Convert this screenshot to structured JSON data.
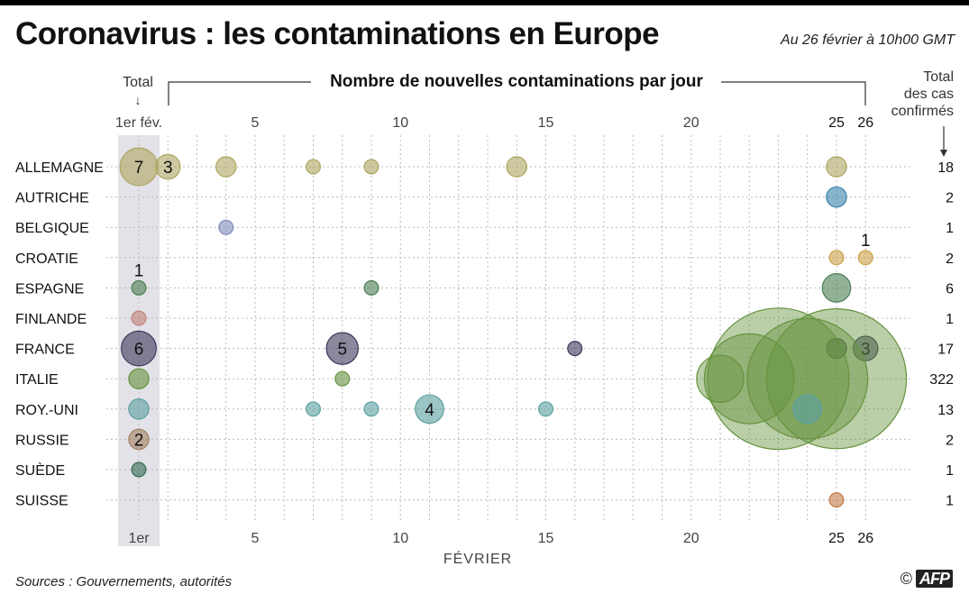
{
  "header": {
    "title": "Coronavirus : les contaminations en Europe",
    "date_note": "Au 26 février à 10h00 GMT"
  },
  "footer": {
    "source": "Sources : Gouvernements, autorités",
    "credit_symbol": "©",
    "credit_logo": "AFP"
  },
  "chart_data": {
    "type": "scatter",
    "subtitle": "Nombre de nouvelles contaminations par jour",
    "xlabel": "FÉVRIER",
    "left_column_label": "Total",
    "left_column_arrow": "↓",
    "right_column_label": [
      "Total",
      "des cas",
      "confirmés"
    ],
    "right_column_arrow": "↓",
    "x_ticks_top": [
      "1er fév.",
      "5",
      "10",
      "15",
      "20",
      "25",
      "26"
    ],
    "x_ticks_bottom": [
      "1er",
      "5",
      "10",
      "15",
      "20",
      "25",
      "26"
    ],
    "x_tick_values": [
      1,
      5,
      10,
      15,
      20,
      25,
      26
    ],
    "xlim": [
      1,
      26
    ],
    "size_encoding": "bubble area proportional to number of cases",
    "grid": true,
    "countries": [
      {
        "name": "ALLEMAGNE",
        "total": "18",
        "color": "#d9cf78",
        "points": [
          [
            1,
            7
          ],
          [
            2,
            3
          ],
          [
            4,
            2
          ],
          [
            7,
            1
          ],
          [
            9,
            1
          ],
          [
            14,
            2
          ],
          [
            25,
            2
          ]
        ],
        "labels": {
          "1": "7",
          "2": "3"
        }
      },
      {
        "name": "AUTRICHE",
        "total": "2",
        "color": "#4aa3d8",
        "points": [
          [
            25,
            2
          ]
        ],
        "labels": {}
      },
      {
        "name": "BELGIQUE",
        "total": "1",
        "color": "#9fadea",
        "points": [
          [
            4,
            1
          ]
        ],
        "labels": {}
      },
      {
        "name": "CROATIE",
        "total": "2",
        "color": "#ffc857",
        "points": [
          [
            25,
            1
          ],
          [
            26,
            1
          ]
        ],
        "labels": {
          "26": "1"
        },
        "label_above": true
      },
      {
        "name": "ESPAGNE",
        "total": "6",
        "color": "#5c9e68",
        "points": [
          [
            1,
            1
          ],
          [
            9,
            1
          ],
          [
            25,
            4
          ]
        ],
        "labels": {
          "1": "1"
        },
        "label_above": true
      },
      {
        "name": "FINLANDE",
        "total": "1",
        "color": "#f4a49a",
        "points": [
          [
            1,
            1
          ]
        ],
        "labels": {}
      },
      {
        "name": "FRANCE",
        "total": "17",
        "color": "#4b4673",
        "points": [
          [
            1,
            6
          ],
          [
            8,
            5
          ],
          [
            16,
            1
          ],
          [
            25,
            2
          ],
          [
            26,
            3
          ]
        ],
        "labels": {
          "1": "6",
          "8": "5",
          "26": "3"
        }
      },
      {
        "name": "ITALIE",
        "total": "322",
        "color": "#7fb84e",
        "points": [
          [
            1,
            2
          ],
          [
            8,
            1
          ],
          [
            21,
            11
          ],
          [
            22,
            40
          ],
          [
            23,
            99
          ],
          [
            24,
            72
          ],
          [
            25,
            97
          ]
        ],
        "labels": {}
      },
      {
        "name": "ROY.-UNI",
        "total": "13",
        "color": "#72c8c8",
        "points": [
          [
            1,
            2
          ],
          [
            7,
            1
          ],
          [
            9,
            1
          ],
          [
            11,
            4
          ],
          [
            15,
            1
          ],
          [
            24,
            4
          ]
        ],
        "labels": {
          "11": "4"
        }
      },
      {
        "name": "RUSSIE",
        "total": "2",
        "color": "#caa07a",
        "points": [
          [
            1,
            2
          ]
        ],
        "labels": {
          "1": "2"
        }
      },
      {
        "name": "SUÈDE",
        "total": "1",
        "color": "#3f8466",
        "points": [
          [
            1,
            1
          ]
        ],
        "labels": {}
      },
      {
        "name": "SUISSE",
        "total": "1",
        "color": "#f4985a",
        "points": [
          [
            25,
            1
          ]
        ],
        "labels": {}
      }
    ]
  }
}
